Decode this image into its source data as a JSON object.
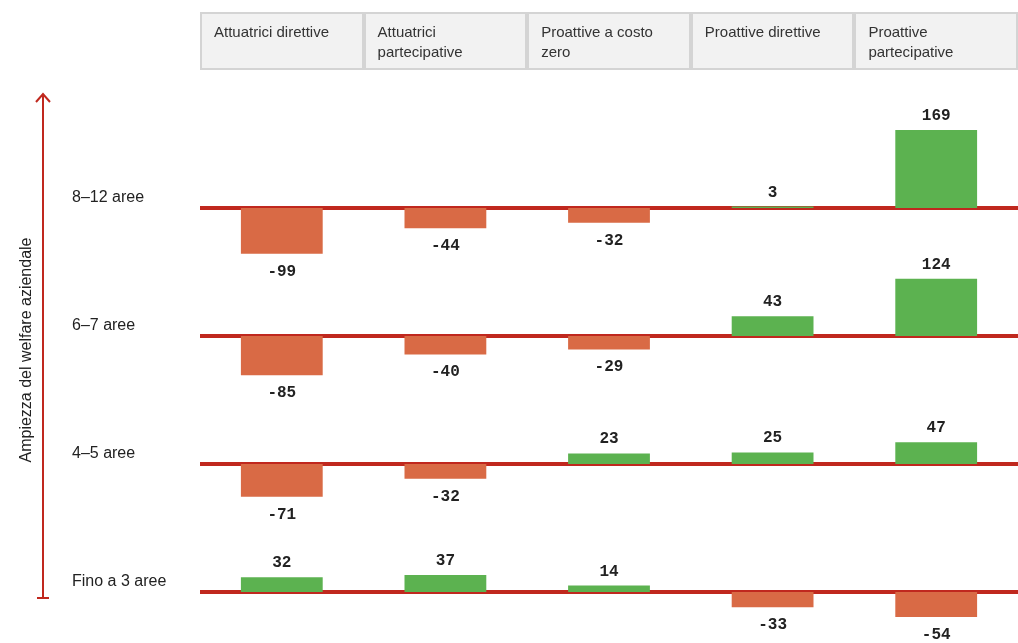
{
  "chart_data": [
    {
      "type": "bar",
      "ylabel": "Ampiezza del welfare aziendale",
      "categories": [
        "Attuatrici direttive",
        "Attuatrici partecipative",
        "Proattive a costo zero",
        "Proattive direttive",
        "Proattive partecipative"
      ],
      "values": [
        -99,
        -44,
        -32,
        3,
        169
      ],
      "colors": [
        "#d96a45",
        "#d96a45",
        "#d96a45",
        "#5cb250",
        "#5cb250"
      ],
      "ref_lines": [
        {
          "axis": "y",
          "value": 0,
          "color": "#c0281e"
        }
      ],
      "annotations": [
        "8–12 aree"
      ],
      "data_labels": true,
      "tick_labels": "x"
    },
    {
      "type": "bar",
      "categories": [
        null,
        null,
        null,
        null,
        null
      ],
      "values": [
        -85,
        -40,
        -29,
        43,
        124
      ],
      "colors": [
        "#d96a45",
        "#d96a45",
        "#d96a45",
        "#5cb250",
        "#5cb250"
      ],
      "ref_lines": [
        {
          "axis": "y",
          "value": 0,
          "color": "#c0281e"
        }
      ],
      "annotations": [
        "6–7 aree"
      ],
      "data_labels": true,
      "tick_labels": false
    },
    {
      "type": "bar",
      "categories": [
        null,
        null,
        null,
        null,
        null
      ],
      "values": [
        -71,
        -32,
        23,
        25,
        47
      ],
      "colors": [
        "#d96a45",
        "#d96a45",
        "#5cb250",
        "#5cb250",
        "#5cb250"
      ],
      "ref_lines": [
        {
          "axis": "y",
          "value": 0,
          "color": "#c0281e"
        }
      ],
      "annotations": [
        "4–5 aree"
      ],
      "data_labels": true,
      "tick_labels": false
    },
    {
      "type": "bar",
      "categories": [
        null,
        null,
        null,
        null,
        null
      ],
      "values": [
        32,
        37,
        14,
        -33,
        -54
      ],
      "colors": [
        "#5cb250",
        "#5cb250",
        "#5cb250",
        "#d96a45",
        "#d96a45"
      ],
      "ref_lines": [
        {
          "axis": "y",
          "value": 0,
          "color": "#c0281e"
        }
      ],
      "annotations": [
        "Fino a 3 aree"
      ],
      "data_labels": true,
      "tick_labels": false
    }
  ]
}
